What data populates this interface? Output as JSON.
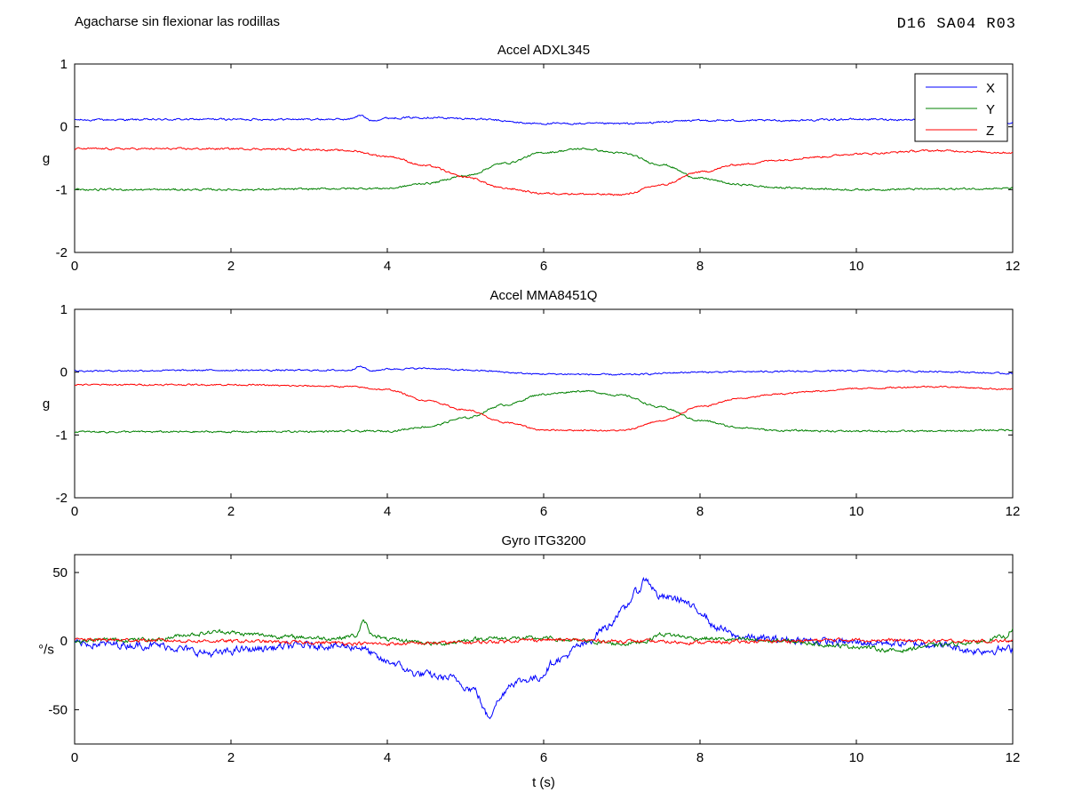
{
  "header": {
    "description": "Agacharse sin flexionar las rodillas",
    "code": "D16 SA04 R03"
  },
  "colors": {
    "X": "#0000ff",
    "Y": "#008000",
    "Z": "#ff0000"
  },
  "chart_data": [
    {
      "type": "line",
      "title": "Accel ADXL345",
      "ylabel": "g",
      "xlabel": "",
      "xlim": [
        0,
        12
      ],
      "ylim": [
        -2,
        1
      ],
      "xticks": [
        0,
        2,
        4,
        6,
        8,
        10,
        12
      ],
      "yticks": [
        1,
        0,
        -1,
        -2
      ],
      "legend": {
        "position": "top-right",
        "entries": [
          "X",
          "Y",
          "Z"
        ]
      },
      "series": [
        {
          "name": "X",
          "color": "#0000ff",
          "noise": 0.012,
          "points": [
            [
              0,
              0.11
            ],
            [
              2,
              0.12
            ],
            [
              3.5,
              0.12
            ],
            [
              3.65,
              0.18
            ],
            [
              3.8,
              0.1
            ],
            [
              4.0,
              0.14
            ],
            [
              4.5,
              0.15
            ],
            [
              5.0,
              0.13
            ],
            [
              6.0,
              0.05
            ],
            [
              7.0,
              0.05
            ],
            [
              8.0,
              0.1
            ],
            [
              9,
              0.1
            ],
            [
              10,
              0.12
            ],
            [
              11,
              0.11
            ],
            [
              12,
              0.07
            ]
          ]
        },
        {
          "name": "Y",
          "color": "#008000",
          "noise": 0.012,
          "points": [
            [
              0,
              -1.0
            ],
            [
              2,
              -1.0
            ],
            [
              4,
              -0.98
            ],
            [
              4.5,
              -0.9
            ],
            [
              5.0,
              -0.78
            ],
            [
              5.5,
              -0.58
            ],
            [
              6.0,
              -0.41
            ],
            [
              6.5,
              -0.35
            ],
            [
              7.0,
              -0.42
            ],
            [
              7.5,
              -0.6
            ],
            [
              8.0,
              -0.82
            ],
            [
              8.5,
              -0.92
            ],
            [
              9,
              -0.97
            ],
            [
              10,
              -1.0
            ],
            [
              11,
              -0.99
            ],
            [
              12,
              -0.98
            ]
          ]
        },
        {
          "name": "Z",
          "color": "#ff0000",
          "noise": 0.012,
          "points": [
            [
              0,
              -0.35
            ],
            [
              1,
              -0.35
            ],
            [
              2,
              -0.35
            ],
            [
              3,
              -0.36
            ],
            [
              3.5,
              -0.38
            ],
            [
              4,
              -0.47
            ],
            [
              4.5,
              -0.62
            ],
            [
              5,
              -0.8
            ],
            [
              5.5,
              -0.98
            ],
            [
              6,
              -1.06
            ],
            [
              7,
              -1.08
            ],
            [
              7.5,
              -0.93
            ],
            [
              8,
              -0.72
            ],
            [
              8.5,
              -0.6
            ],
            [
              9,
              -0.53
            ],
            [
              9.5,
              -0.48
            ],
            [
              10,
              -0.43
            ],
            [
              11,
              -0.38
            ],
            [
              12,
              -0.41
            ]
          ]
        }
      ]
    },
    {
      "type": "line",
      "title": "Accel MMA8451Q",
      "ylabel": "g",
      "xlabel": "",
      "xlim": [
        0,
        12
      ],
      "ylim": [
        -2,
        1
      ],
      "xticks": [
        0,
        2,
        4,
        6,
        8,
        10,
        12
      ],
      "yticks": [
        1,
        0,
        -1,
        -2
      ],
      "series": [
        {
          "name": "X",
          "color": "#0000ff",
          "noise": 0.01,
          "points": [
            [
              0,
              0.02
            ],
            [
              2,
              0.03
            ],
            [
              3.5,
              0.03
            ],
            [
              3.65,
              0.09
            ],
            [
              3.8,
              0.02
            ],
            [
              4.0,
              0.05
            ],
            [
              4.5,
              0.06
            ],
            [
              5.0,
              0.03
            ],
            [
              6.0,
              -0.03
            ],
            [
              7.0,
              -0.04
            ],
            [
              8.0,
              0.0
            ],
            [
              9,
              0.01
            ],
            [
              10,
              0.02
            ],
            [
              11,
              0.01
            ],
            [
              12,
              -0.02
            ]
          ]
        },
        {
          "name": "Y",
          "color": "#008000",
          "noise": 0.012,
          "points": [
            [
              0,
              -0.95
            ],
            [
              2,
              -0.95
            ],
            [
              4,
              -0.94
            ],
            [
              4.5,
              -0.87
            ],
            [
              5.0,
              -0.73
            ],
            [
              5.5,
              -0.52
            ],
            [
              6.0,
              -0.35
            ],
            [
              6.5,
              -0.3
            ],
            [
              7.0,
              -0.37
            ],
            [
              7.5,
              -0.56
            ],
            [
              8.0,
              -0.77
            ],
            [
              8.5,
              -0.88
            ],
            [
              9,
              -0.93
            ],
            [
              10,
              -0.94
            ],
            [
              11,
              -0.94
            ],
            [
              12,
              -0.92
            ]
          ]
        },
        {
          "name": "Z",
          "color": "#ff0000",
          "noise": 0.01,
          "points": [
            [
              0,
              -0.2
            ],
            [
              1,
              -0.2
            ],
            [
              2,
              -0.2
            ],
            [
              3,
              -0.22
            ],
            [
              3.5,
              -0.23
            ],
            [
              4,
              -0.28
            ],
            [
              4.5,
              -0.45
            ],
            [
              5,
              -0.6
            ],
            [
              5.5,
              -0.8
            ],
            [
              6,
              -0.92
            ],
            [
              7,
              -0.93
            ],
            [
              7.5,
              -0.78
            ],
            [
              8,
              -0.55
            ],
            [
              8.5,
              -0.42
            ],
            [
              9,
              -0.35
            ],
            [
              9.5,
              -0.3
            ],
            [
              10,
              -0.26
            ],
            [
              11,
              -0.23
            ],
            [
              12,
              -0.27
            ]
          ]
        }
      ]
    },
    {
      "type": "line",
      "title": "Gyro ITG3200",
      "ylabel": "°/s",
      "xlabel": "t (s)",
      "xlim": [
        0,
        12
      ],
      "ylim": [
        -75,
        63
      ],
      "xticks": [
        0,
        2,
        4,
        6,
        8,
        10,
        12
      ],
      "yticks": [
        50,
        0,
        -50
      ],
      "series": [
        {
          "name": "X",
          "color": "#0000ff",
          "noise": 2.2,
          "points": [
            [
              0,
              -2
            ],
            [
              1,
              -3
            ],
            [
              1.8,
              -9
            ],
            [
              2.2,
              -6
            ],
            [
              3,
              -3
            ],
            [
              3.6,
              -4
            ],
            [
              4.0,
              -15
            ],
            [
              4.4,
              -24
            ],
            [
              4.8,
              -27
            ],
            [
              5.1,
              -35
            ],
            [
              5.3,
              -55
            ],
            [
              5.4,
              -44
            ],
            [
              5.6,
              -30
            ],
            [
              5.9,
              -27
            ],
            [
              6.2,
              -13
            ],
            [
              6.5,
              -3
            ],
            [
              6.8,
              10
            ],
            [
              7.0,
              22
            ],
            [
              7.2,
              36
            ],
            [
              7.3,
              45
            ],
            [
              7.5,
              32
            ],
            [
              7.7,
              31
            ],
            [
              8.0,
              22
            ],
            [
              8.2,
              10
            ],
            [
              8.5,
              3
            ],
            [
              9,
              1
            ],
            [
              10,
              -1
            ],
            [
              11,
              -2
            ],
            [
              11.5,
              -7
            ],
            [
              12,
              -6
            ]
          ]
        },
        {
          "name": "Y",
          "color": "#008000",
          "noise": 1.2,
          "points": [
            [
              0,
              0
            ],
            [
              0.5,
              1
            ],
            [
              1,
              1
            ],
            [
              1.5,
              5
            ],
            [
              1.9,
              7
            ],
            [
              2.2,
              5
            ],
            [
              2.8,
              3
            ],
            [
              3.3,
              2
            ],
            [
              3.6,
              4
            ],
            [
              3.7,
              14
            ],
            [
              3.8,
              5
            ],
            [
              4.0,
              1
            ],
            [
              4.3,
              0
            ],
            [
              4.6,
              -2
            ],
            [
              5.3,
              2
            ],
            [
              6.0,
              2
            ],
            [
              6.5,
              0
            ],
            [
              7.0,
              -2
            ],
            [
              7.3,
              0
            ],
            [
              7.5,
              5
            ],
            [
              8.0,
              2
            ],
            [
              8.5,
              1
            ],
            [
              9,
              0
            ],
            [
              10,
              -4
            ],
            [
              10.5,
              -7
            ],
            [
              11,
              -3
            ],
            [
              11.5,
              -1
            ],
            [
              11.9,
              3
            ],
            [
              12,
              9
            ]
          ]
        },
        {
          "name": "Z",
          "color": "#ff0000",
          "noise": 1.0,
          "points": [
            [
              0,
              1
            ],
            [
              2,
              0
            ],
            [
              3,
              -1
            ],
            [
              4,
              -2
            ],
            [
              5,
              -1
            ],
            [
              6,
              1
            ],
            [
              7,
              0
            ],
            [
              8,
              -1
            ],
            [
              9,
              0
            ],
            [
              10,
              1
            ],
            [
              11,
              0
            ],
            [
              12,
              0
            ]
          ]
        }
      ]
    }
  ]
}
